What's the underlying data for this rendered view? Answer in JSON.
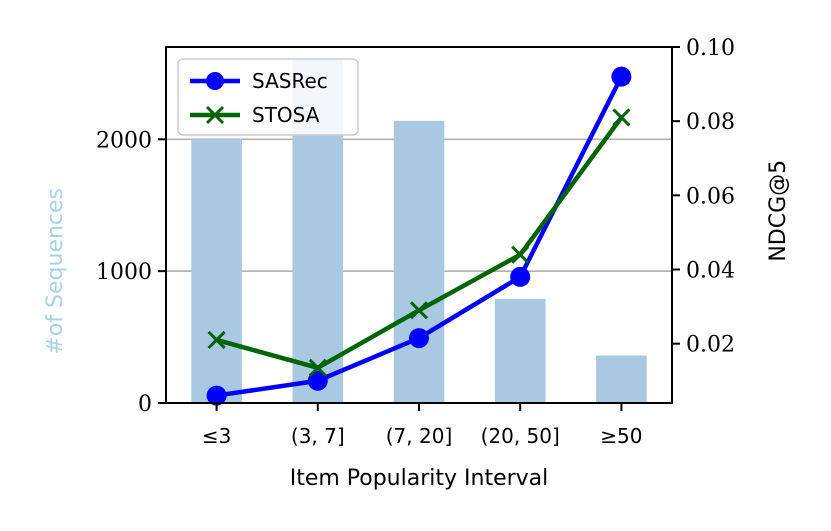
{
  "chart_data": {
    "type": "bar",
    "categories": [
      "≤3",
      "(3, 7]",
      "(7, 20]",
      "(20, 50]",
      "≥50"
    ],
    "bars": {
      "values": [
        2000,
        2600,
        2140,
        790,
        360
      ],
      "color": "#a9c9e2",
      "axis": "left"
    },
    "series": [
      {
        "name": "SASRec",
        "values": [
          0.006,
          0.01,
          0.0215,
          0.038,
          0.092
        ],
        "color": "#0000ff",
        "marker": "circle",
        "axis": "right"
      },
      {
        "name": "STOSA",
        "values": [
          0.021,
          0.0135,
          0.029,
          0.044,
          0.081
        ],
        "color": "#006400",
        "marker": "x",
        "axis": "right"
      }
    ],
    "xlabel": "Item Popularity Interval",
    "ylabel_left": "#of Sequences",
    "ylabel_right": "NDCG@5",
    "ylim_left": [
      0,
      2700
    ],
    "ylim_right": [
      0.004,
      0.1
    ],
    "yticks_left": [
      "0",
      "1000",
      "2000"
    ],
    "yticks_right": [
      "0.02",
      "0.04",
      "0.06",
      "0.08",
      "0.10"
    ],
    "grid": "horizontal at left ticks",
    "legend_position": "top-left",
    "ylabel_left_color": "#a9d2e6"
  }
}
